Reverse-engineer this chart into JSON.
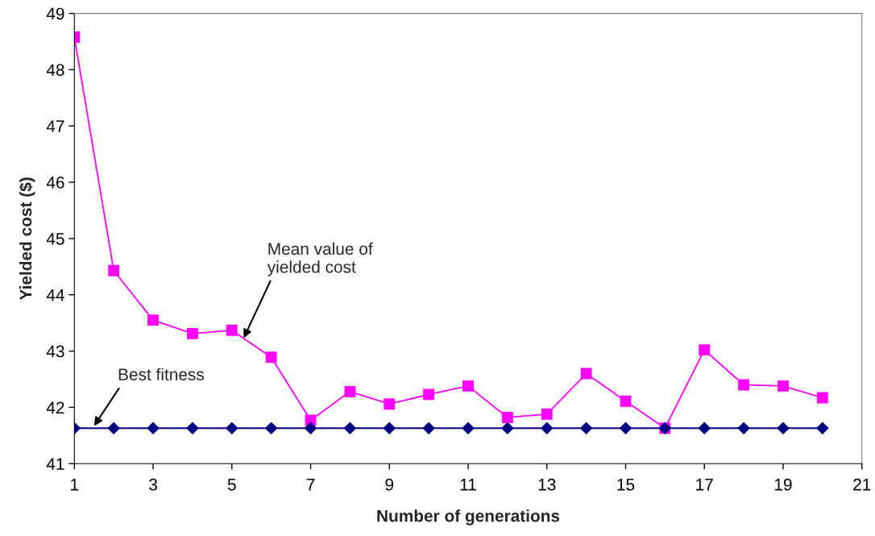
{
  "chart_data": {
    "type": "line",
    "xlabel": "Number of generations",
    "ylabel": "Yielded cost ($)",
    "x": [
      1,
      2,
      3,
      4,
      5,
      6,
      7,
      8,
      9,
      10,
      11,
      12,
      13,
      14,
      15,
      16,
      17,
      18,
      19,
      20
    ],
    "series": [
      {
        "color": "#ff00ff",
        "marker": "square",
        "values": [
          48.58,
          44.43,
          43.55,
          43.31,
          43.37,
          42.89,
          41.77,
          42.28,
          42.06,
          42.23,
          42.38,
          41.82,
          41.88,
          42.6,
          42.11,
          41.63,
          43.02,
          42.4,
          42.38,
          42.17
        ]
      },
      {
        "color": "#000080",
        "marker": "diamond",
        "values": [
          41.63,
          41.63,
          41.63,
          41.63,
          41.63,
          41.63,
          41.63,
          41.63,
          41.63,
          41.63,
          41.63,
          41.63,
          41.63,
          41.63,
          41.63,
          41.63,
          41.63,
          41.63,
          41.63,
          41.63
        ]
      }
    ],
    "xlim": [
      1,
      21
    ],
    "xticks": [
      1,
      3,
      5,
      7,
      9,
      11,
      13,
      15,
      17,
      19,
      21
    ],
    "ylim": [
      41,
      49
    ],
    "yticks": [
      41,
      42,
      43,
      44,
      45,
      46,
      47,
      48,
      49
    ],
    "grid": false,
    "legend": false,
    "annotations": [
      {
        "text": "Mean value of\nyielded cost",
        "x": 5.3,
        "y": 43.23
      },
      {
        "text": "Best fitness",
        "x": 1.5,
        "y": 41.67
      }
    ]
  }
}
